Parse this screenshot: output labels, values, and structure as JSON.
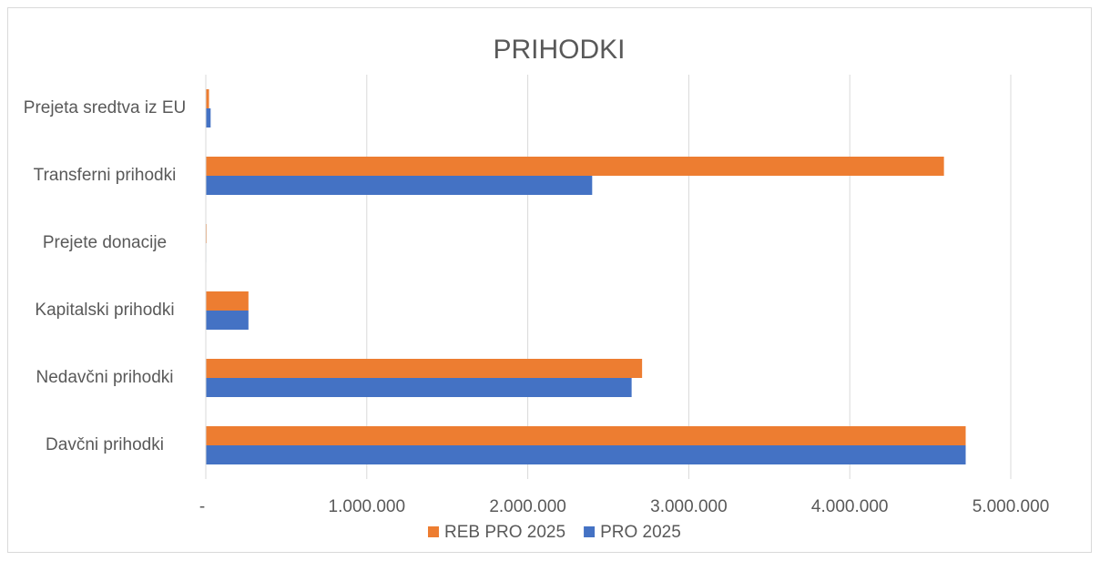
{
  "chart_data": {
    "type": "hbar",
    "title": "PRIHODKI",
    "categories": [
      "Davčni prihodki",
      "Nedavčni prihodki",
      "Kapitalski prihodki",
      "Prejete donacije",
      "Transferni prihodki",
      "Prejeta sredtva iz EU"
    ],
    "series": [
      {
        "name": "REB PRO 2025",
        "color": "#ed7d31",
        "values": [
          4720000,
          2710000,
          265000,
          5000,
          4585000,
          20000
        ]
      },
      {
        "name": "PRO 2025",
        "color": "#4472c4",
        "values": [
          4720000,
          2645000,
          265000,
          3000,
          2400000,
          30000
        ]
      }
    ],
    "xlim": [
      0,
      5000000
    ],
    "xticks": [
      {
        "value": 0,
        "label": "-"
      },
      {
        "value": 1000000,
        "label": "1.000.000"
      },
      {
        "value": 2000000,
        "label": "2.000.000"
      },
      {
        "value": 3000000,
        "label": "3.000.000"
      },
      {
        "value": 4000000,
        "label": "4.000.000"
      },
      {
        "value": 5000000,
        "label": "5.000.000"
      }
    ],
    "grid": true,
    "legend": "bottom"
  }
}
